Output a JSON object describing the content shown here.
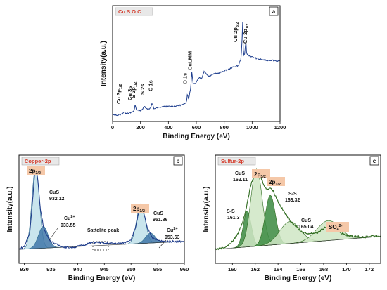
{
  "colors": {
    "survey_line": "#1f3f8f",
    "copper_line": "#1d3b8a",
    "copper_fill_dark": "#3f77a8",
    "copper_fill_light": "#bfe0ea",
    "copper_envelope": "#2e6e8e",
    "sulfur_line": "#2f6b1f",
    "sulfur_fill_dark": "#3a8a3f",
    "sulfur_fill_light": "#cfe6c4",
    "badge_bg": "#f5c8a8",
    "tag_red": "#d43a2a",
    "tag_bg": "#e8e8e8"
  },
  "chart_data": [
    {
      "type": "line",
      "panel_letter": "a",
      "tag": "Cu  S O C",
      "xlabel": "Binding Energy (eV)",
      "ylabel": "Intensity(a.u.)",
      "xlim": [
        0,
        1200
      ],
      "xticks": [
        0,
        200,
        400,
        600,
        800,
        1000,
        1200
      ],
      "ylim": [
        0,
        100
      ],
      "series": [
        {
          "x": [
            0,
            40,
            70,
            80,
            90,
            100,
            130,
            155,
            162,
            170,
            190,
            215,
            228,
            240,
            270,
            284,
            295,
            330,
            380,
            430,
            480,
            515,
            530,
            536,
            545,
            560,
            568,
            576,
            590,
            620,
            640,
            655,
            690,
            720,
            760,
            800,
            840,
            870,
            900,
            910,
            920,
            927,
            932,
            938,
            945,
            950,
            953,
            958,
            970,
            1000,
            1050,
            1100,
            1150,
            1200
          ],
          "y": [
            6,
            6,
            7,
            9,
            8,
            8,
            8,
            10,
            16,
            11,
            10,
            11,
            15,
            12,
            12,
            17,
            12,
            13,
            14,
            14,
            15,
            16,
            19,
            26,
            21,
            31,
            47,
            36,
            35,
            41,
            40,
            47,
            42,
            44,
            45,
            47,
            49,
            51,
            52,
            55,
            58,
            73,
            95,
            60,
            62,
            64,
            85,
            64,
            62,
            60,
            58,
            57,
            57,
            56
          ]
        }
      ],
      "annotations": [
        {
          "text": "Cu 3p",
          "sub": "1/2",
          "x": 75
        },
        {
          "text": "Cu 3s",
          "x": 120
        },
        {
          "text": "S 2p",
          "sub": "1/2",
          "x": 162
        },
        {
          "text": "S 2s",
          "x": 228
        },
        {
          "text": "C 1s",
          "x": 284
        },
        {
          "text": "O 1s",
          "x": 531
        },
        {
          "text": "CuLMM",
          "x": 568
        },
        {
          "text": "Cu 2p",
          "sub": "3/2",
          "x": 932
        },
        {
          "text": "Cu 2p",
          "sub": "1/2",
          "x": 953
        }
      ]
    },
    {
      "type": "line",
      "panel_letter": "b",
      "tag": "Copper-2p",
      "xlabel": "Binding Energy (eV)",
      "ylabel": "Intensity(a.u.)",
      "xlim": [
        929,
        960
      ],
      "xticks": [
        930,
        935,
        940,
        945,
        950,
        955,
        960
      ],
      "ylim": [
        0,
        100
      ],
      "series": [
        {
          "x": [
            929,
            930,
            931,
            931.5,
            932,
            932.12,
            932.5,
            933,
            933.55,
            934,
            935,
            936,
            937,
            938,
            939,
            940,
            941,
            942,
            943,
            944,
            945,
            946,
            947,
            948,
            949,
            950,
            950.8,
            951.5,
            951.86,
            952.5,
            953,
            953.63,
            954,
            955,
            956,
            957,
            958,
            959,
            960
          ],
          "y": [
            14,
            17,
            30,
            60,
            95,
            97,
            85,
            55,
            38,
            30,
            22,
            19,
            17,
            16,
            16,
            17,
            18,
            20,
            21,
            21,
            20,
            20,
            20,
            20,
            21,
            24,
            35,
            52,
            56,
            48,
            36,
            30,
            26,
            23,
            22,
            22,
            22,
            22,
            22
          ]
        }
      ],
      "components": [
        {
          "name": "CuS",
          "center": 932.12,
          "height": 82,
          "width": 0.7
        },
        {
          "name": "Cu2+",
          "center": 933.55,
          "height": 22,
          "width": 0.9
        },
        {
          "name": "CuS",
          "center": 951.86,
          "height": 40,
          "width": 0.8
        },
        {
          "name": "Cu2+",
          "center": 953.63,
          "height": 10,
          "width": 0.9
        }
      ],
      "annotations": [
        {
          "text": "2p",
          "sub": "3/2",
          "badge": true
        },
        {
          "text": "CuS",
          "value": "932.12"
        },
        {
          "text": "Cu",
          "sup": "2+",
          "value": "933.55"
        },
        {
          "text": "Sattelite peak"
        },
        {
          "text": "2p",
          "sub": "1/2",
          "badge": true
        },
        {
          "text": "CuS",
          "value": "951.86"
        },
        {
          "text": "Cu",
          "sup": "2+",
          "value": "953.63"
        }
      ]
    },
    {
      "type": "line",
      "panel_letter": "c",
      "tag": "Sulfur-2p",
      "xlabel": "Binding Energy (eV)",
      "ylabel": "Intensity(a.u.)",
      "xlim": [
        158.5,
        173
      ],
      "xticks": [
        160,
        162,
        164,
        166,
        168,
        170,
        172
      ],
      "ylim": [
        0,
        100
      ],
      "series": [
        {
          "x": [
            158.5,
            159,
            159.5,
            160,
            160.5,
            161,
            161.3,
            161.6,
            162,
            162.11,
            162.4,
            162.8,
            163,
            163.32,
            163.6,
            164,
            164.5,
            165,
            165.04,
            165.5,
            166,
            166.5,
            167,
            167.5,
            168,
            168.4,
            168.8,
            169.2,
            169.6,
            170,
            170.5,
            171,
            171.5,
            172,
            172.5,
            173
          ],
          "y": [
            14,
            15,
            17,
            22,
            30,
            45,
            60,
            78,
            92,
            94,
            88,
            78,
            74,
            76,
            72,
            62,
            52,
            44,
            43,
            38,
            32,
            30,
            30,
            31,
            35,
            38,
            37,
            33,
            30,
            28,
            27,
            27,
            26,
            27,
            27,
            27
          ]
        }
      ],
      "components": [
        {
          "name": "S-S",
          "center": 161.3,
          "height": 36,
          "width": 0.35
        },
        {
          "name": "CuS",
          "center": 162.11,
          "height": 78,
          "width": 0.5
        },
        {
          "name": "S-S",
          "center": 163.32,
          "height": 50,
          "width": 0.45
        },
        {
          "name": "CuS",
          "center": 165.04,
          "height": 22,
          "width": 0.9
        },
        {
          "name": "SO42-",
          "center": 168.4,
          "height": 20,
          "width": 1.0
        }
      ],
      "annotations": [
        {
          "text": "2p",
          "sub": "3/2",
          "badge": true
        },
        {
          "text": "CuS",
          "value": "162.11"
        },
        {
          "text": "2p",
          "sub": "1/2",
          "badge": true
        },
        {
          "text": "S-S",
          "value": "163.32"
        },
        {
          "text": "S-S",
          "value": "161.3"
        },
        {
          "text": "CuS",
          "value": "165.04"
        },
        {
          "text": "SO",
          "sub": "4",
          "sup": "2-",
          "badge": true
        }
      ]
    }
  ]
}
